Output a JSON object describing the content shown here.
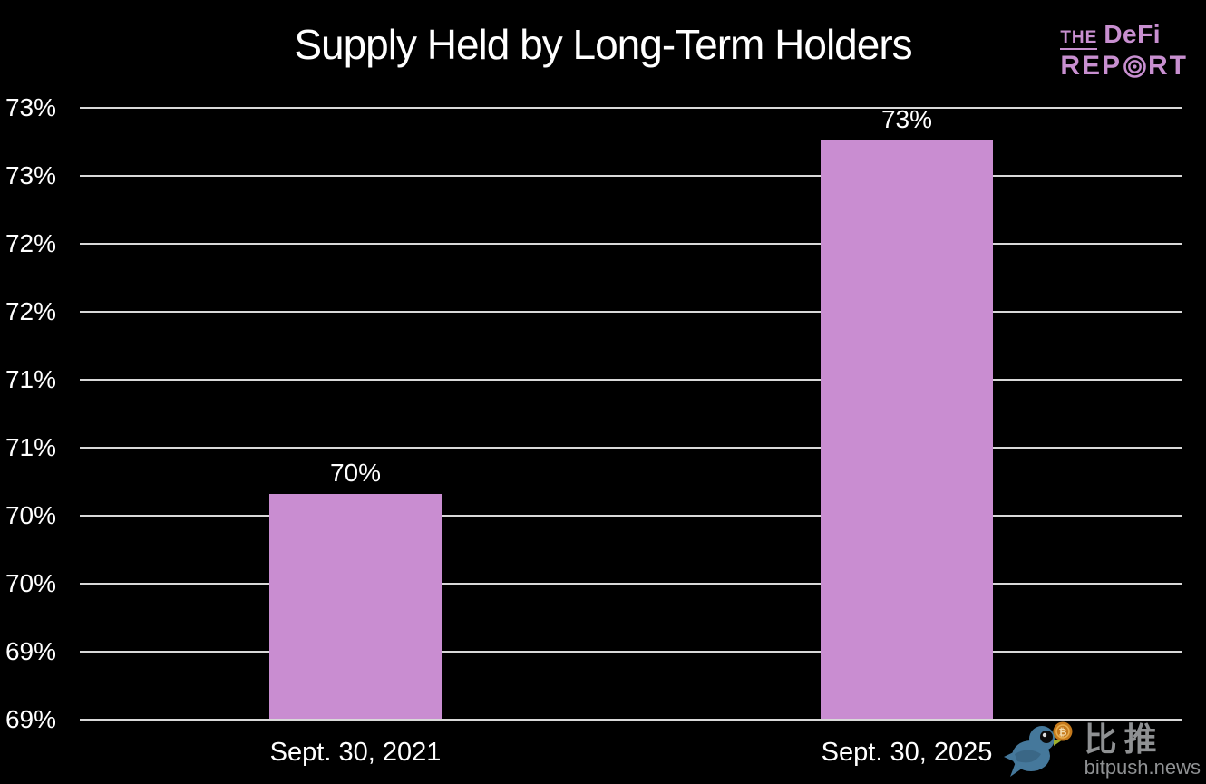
{
  "title": "Supply Held by Long-Term Holders",
  "brand": {
    "the": "THE",
    "defi": "DeFi",
    "rep": "REP",
    "rt": "RT",
    "color": "#c88fd0"
  },
  "watermark": {
    "cn": "比推",
    "site": "bitpush.news",
    "text_color": "#8f9193",
    "bird_color": "#45789b",
    "bird_dark": "#3a6786",
    "eye_patch_color": "#0a0a0a",
    "eye_color": "#dddddd",
    "beak_color": "#b9cc35",
    "beak_dark": "#9fb12c",
    "coin_color": "#c5791c",
    "coin_ring": "#e9ae4e",
    "coin_symbol": "₿"
  },
  "chart_data": {
    "type": "bar",
    "title": "Supply Held by Long-Term Holders",
    "categories": [
      "Sept. 30, 2021",
      "Sept. 30, 2025"
    ],
    "values": [
      70.4,
      73.0
    ],
    "bar_labels": [
      "70%",
      "73%"
    ],
    "ylim": [
      68.75,
      73.25
    ],
    "ytick_step": 0.5,
    "ytick_values": [
      68.75,
      69.25,
      69.75,
      70.25,
      70.75,
      71.25,
      71.75,
      72.25,
      72.75,
      73.25
    ],
    "ytick_labels": [
      "69%",
      "69%",
      "70%",
      "70%",
      "71%",
      "71%",
      "72%",
      "72%",
      "73%",
      "73%"
    ],
    "grid": true,
    "legend": false,
    "bar_color": "#c98dd1",
    "gridline_color": "#d9d9d9",
    "background_color": "#000000",
    "label_color": "#ffffff"
  }
}
